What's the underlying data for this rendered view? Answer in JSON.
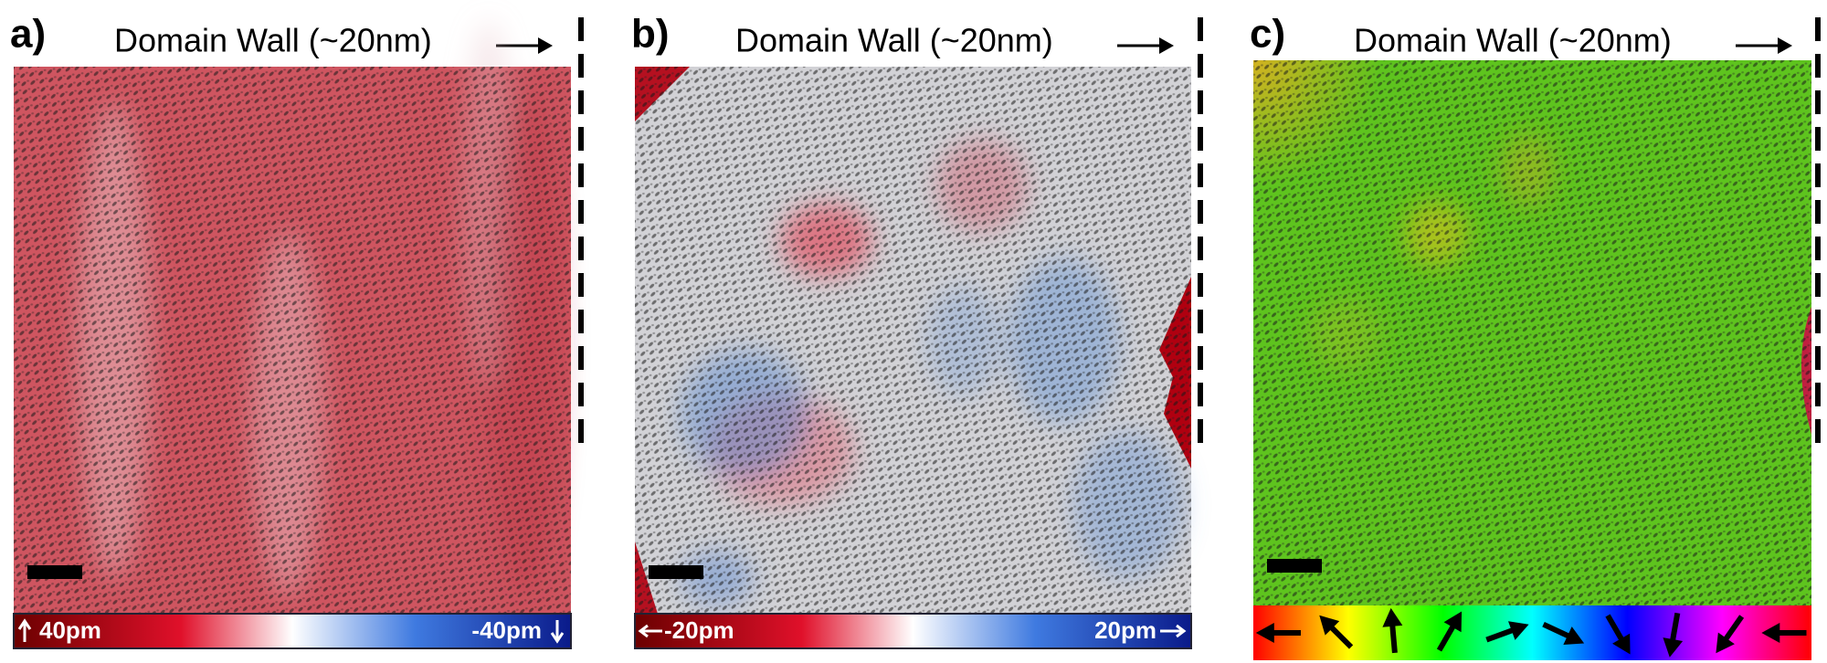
{
  "panels": [
    {
      "label": "a)",
      "title": "Domain Wall (~20nm)",
      "colorbar": {
        "left": "40pm",
        "right": "-40pm"
      }
    },
    {
      "label": "b)",
      "title": "Domain Wall (~20nm)",
      "colorbar": {
        "left": "-20pm",
        "right": "20pm"
      }
    },
    {
      "label": "c)",
      "title": "Domain Wall (~20nm)"
    }
  ]
}
